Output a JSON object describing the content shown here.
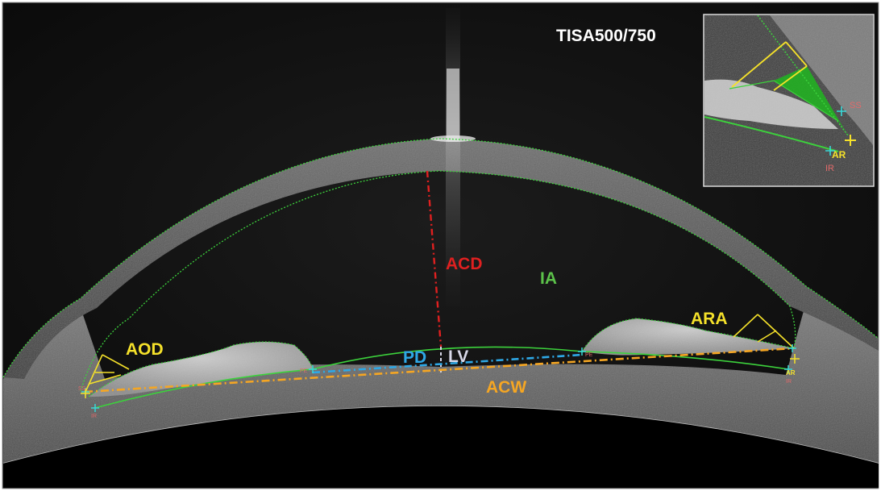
{
  "labels": {
    "acd": "ACD",
    "ia": "IA",
    "aod": "AOD",
    "ara": "ARA",
    "pd": "PD",
    "lv": "LV",
    "acw": "ACW",
    "tisa": "TISA500/750"
  },
  "inset_markers": {
    "ss": "SS",
    "ar": "AR",
    "ir": "IR"
  },
  "colors": {
    "acd": "#e02020",
    "ia": "#5cc24a",
    "aod": "#f5e12a",
    "ara": "#f5e12a",
    "pd": "#2ea8e6",
    "lv": "#d8d8e8",
    "acw": "#f5a623",
    "tisa": "#ffffff",
    "contour": "#3cd23c",
    "marker": "#e06a6a"
  }
}
